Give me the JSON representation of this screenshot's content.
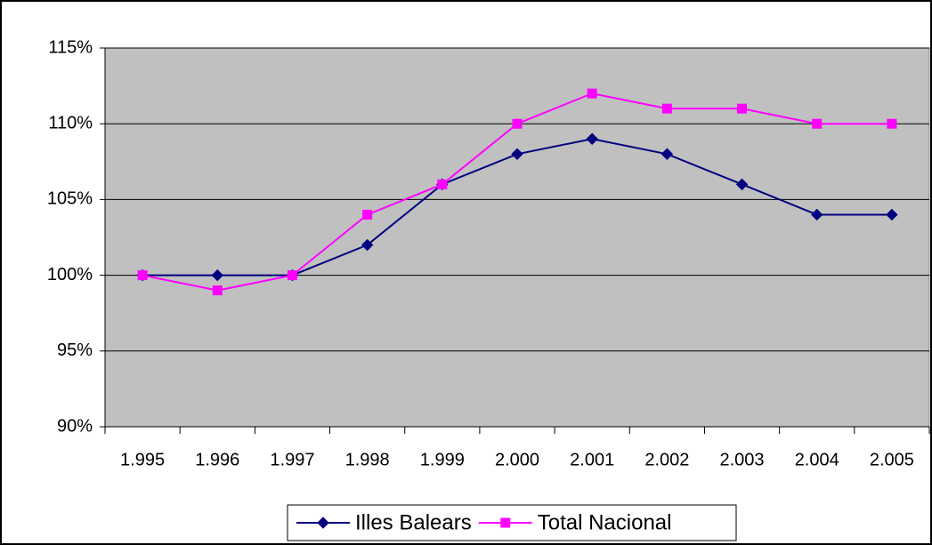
{
  "chart_data": {
    "type": "line",
    "categories": [
      "1.995",
      "1.996",
      "1.997",
      "1.998",
      "1.999",
      "2.000",
      "2.001",
      "2.002",
      "2.003",
      "2.004",
      "2.005"
    ],
    "series": [
      {
        "name": "Illes Balears",
        "color": "#000080",
        "marker": "diamond",
        "values": [
          100,
          100,
          100,
          102,
          106,
          108,
          109,
          108,
          106,
          104,
          104
        ]
      },
      {
        "name": "Total Nacional",
        "color": "#ff00ff",
        "marker": "square",
        "values": [
          100,
          99,
          100,
          104,
          106,
          110,
          112,
          111,
          111,
          110,
          110
        ]
      }
    ],
    "ylim": [
      90,
      115
    ],
    "yticks": [
      {
        "value": 90,
        "label": "90%"
      },
      {
        "value": 95,
        "label": "95%"
      },
      {
        "value": 100,
        "label": "100%"
      },
      {
        "value": 105,
        "label": "105%"
      },
      {
        "value": 110,
        "label": "110%"
      },
      {
        "value": 115,
        "label": "115%"
      }
    ],
    "grid": true,
    "plot_background": "#c0c0c0",
    "legend": "bottom"
  }
}
